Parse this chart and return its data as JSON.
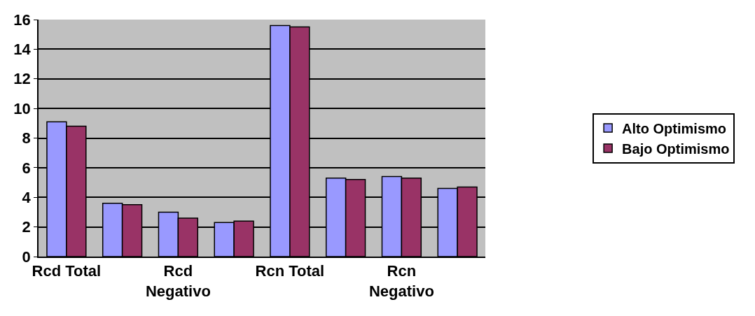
{
  "chart_data": {
    "type": "bar",
    "categories": [
      "Rcd Total",
      null,
      "Rcd Negativo",
      null,
      "Rcn Total",
      null,
      "Rcn Negativo",
      null
    ],
    "series": [
      {
        "name": "Alto Optimismo",
        "color": "#9999ff",
        "values": [
          9.1,
          3.6,
          3.0,
          2.3,
          15.6,
          5.3,
          5.4,
          4.6
        ]
      },
      {
        "name": "Bajo Optimismo",
        "color": "#993366",
        "values": [
          8.8,
          3.5,
          2.6,
          2.4,
          15.5,
          5.2,
          5.3,
          4.7
        ]
      }
    ],
    "ylim": [
      0,
      16
    ],
    "yticks": [
      0,
      2,
      4,
      6,
      8,
      10,
      12,
      14,
      16
    ],
    "grid": "y",
    "legend": "right"
  }
}
